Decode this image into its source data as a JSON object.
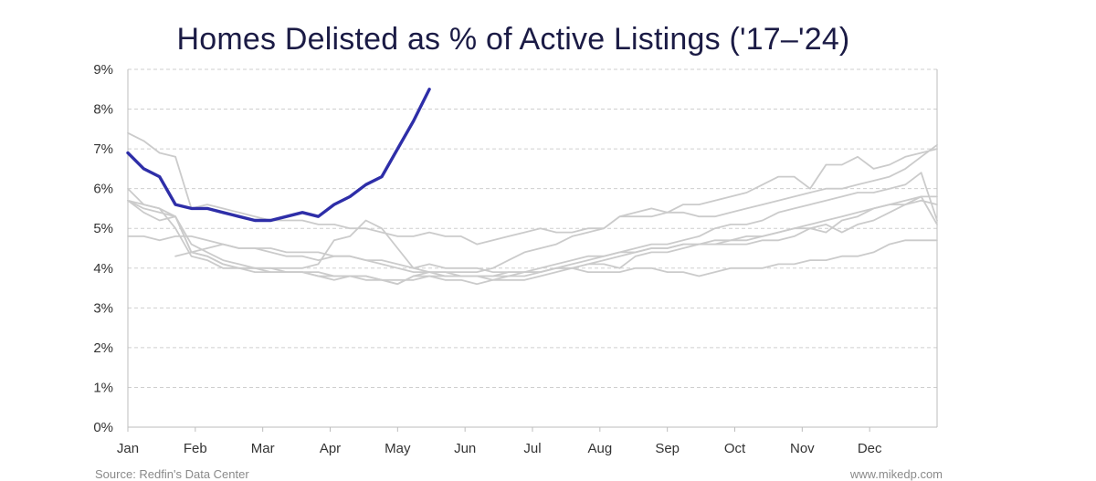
{
  "chart_data": {
    "type": "line",
    "title": "Homes Delisted as % of Active Listings ('17–'24)",
    "xlabel": "",
    "ylabel": "",
    "x_tick_labels": [
      "Jan",
      "Feb",
      "Mar",
      "Apr",
      "May",
      "Jun",
      "Jul",
      "Aug",
      "Sep",
      "Oct",
      "Nov",
      "Dec"
    ],
    "y_tick_labels": [
      "0%",
      "1%",
      "2%",
      "3%",
      "4%",
      "5%",
      "6%",
      "7%",
      "8%",
      "9%"
    ],
    "ylim": [
      0,
      9
    ],
    "x_unit": "week of year",
    "xlim": [
      0,
      51
    ],
    "grid": "horizontal dashed",
    "legend": "none",
    "highlight_color": "#2e2ea8",
    "background_series_color": "#cbcbcb",
    "series": [
      {
        "highlight": false,
        "values": [
          4.8,
          4.8,
          4.7,
          4.8,
          4.8,
          4.7,
          4.6,
          4.5,
          4.5,
          4.4,
          4.3,
          4.3,
          4.2,
          4.3,
          4.3,
          4.2,
          4.2,
          4.1,
          4.0,
          4.1,
          4.0,
          4.0,
          4.0,
          3.9,
          3.9,
          3.9,
          3.9,
          4.0,
          4.0,
          3.9,
          3.9,
          3.9,
          4.0,
          4.0,
          3.9,
          3.9,
          3.8,
          3.9,
          4.0,
          4.0,
          4.0,
          4.1,
          4.1,
          4.2,
          4.2,
          4.3,
          4.3,
          4.4,
          4.6,
          4.7,
          4.7,
          4.7
        ]
      },
      {
        "highlight": false,
        "values": [
          5.7,
          5.5,
          5.4,
          5.3,
          4.6,
          4.4,
          4.2,
          4.1,
          4.0,
          3.9,
          3.9,
          3.9,
          3.8,
          3.8,
          3.8,
          3.7,
          3.7,
          3.6,
          3.8,
          3.9,
          3.9,
          3.8,
          3.8,
          3.7,
          3.8,
          3.9,
          3.9,
          4.0,
          4.0,
          4.1,
          4.1,
          4.0,
          4.3,
          4.4,
          4.4,
          4.5,
          4.6,
          4.6,
          4.6,
          4.6,
          4.7,
          4.7,
          4.8,
          5.0,
          5.1,
          4.9,
          5.1,
          5.2,
          5.4,
          5.6,
          5.7,
          5.6
        ]
      },
      {
        "highlight": false,
        "values": [
          5.7,
          5.4,
          5.2,
          5.3,
          4.4,
          4.3,
          4.1,
          4.0,
          4.0,
          4.0,
          3.9,
          3.9,
          3.8,
          3.7,
          3.8,
          3.8,
          3.7,
          3.6,
          3.8,
          3.8,
          3.7,
          3.7,
          3.6,
          3.7,
          3.7,
          3.7,
          3.8,
          3.9,
          4.0,
          4.1,
          4.2,
          4.3,
          4.4,
          4.5,
          4.5,
          4.6,
          4.6,
          4.6,
          4.7,
          4.7,
          4.8,
          4.9,
          5.0,
          5.0,
          4.9,
          5.2,
          5.3,
          5.5,
          5.6,
          5.7,
          5.8,
          5.1
        ]
      },
      {
        "highlight": false,
        "values": [
          6.0,
          5.6,
          5.5,
          5.3,
          4.4,
          4.3,
          4.1,
          4.0,
          3.9,
          3.9,
          3.9,
          3.9,
          3.9,
          3.8,
          3.8,
          3.8,
          3.7,
          3.7,
          3.7,
          3.8,
          3.8,
          3.8,
          3.8,
          3.8,
          3.8,
          3.8,
          3.9,
          4.0,
          4.1,
          4.2,
          4.3,
          4.4,
          4.4,
          4.5,
          4.5,
          4.6,
          4.6,
          4.7,
          4.7,
          4.8,
          4.8,
          4.9,
          5.0,
          5.1,
          5.2,
          5.3,
          5.4,
          5.5,
          5.6,
          5.6,
          5.8,
          5.8
        ]
      },
      {
        "highlight": false,
        "values": [
          7.4,
          7.2,
          6.9,
          6.8,
          5.5,
          5.6,
          5.5,
          5.4,
          5.3,
          5.2,
          5.2,
          5.2,
          5.1,
          5.1,
          5.0,
          5.0,
          4.9,
          4.8,
          4.8,
          4.9,
          4.8,
          4.8,
          4.6,
          4.7,
          4.8,
          4.9,
          5.0,
          4.9,
          4.9,
          5.0,
          5.0,
          5.3,
          5.3,
          5.3,
          5.4,
          5.4,
          5.3,
          5.3,
          5.4,
          5.5,
          5.6,
          5.7,
          5.8,
          5.9,
          6.0,
          6.0,
          6.1,
          6.2,
          6.3,
          6.5,
          6.8,
          7.1
        ]
      },
      {
        "highlight": false,
        "values": [
          5.7,
          5.6,
          5.5,
          5.0,
          4.3,
          4.2,
          4.0,
          4.0,
          4.0,
          4.0,
          4.0,
          4.0,
          4.1,
          4.7,
          4.8,
          5.2,
          5.0,
          4.5,
          4.0,
          3.9,
          3.8,
          3.8,
          3.8,
          3.8,
          3.9,
          3.9,
          4.0,
          4.1,
          4.2,
          4.3,
          4.3,
          4.4,
          4.5,
          4.6,
          4.6,
          4.7,
          4.8,
          5.0,
          5.1,
          5.1,
          5.2,
          5.4,
          5.5,
          5.6,
          5.7,
          5.8,
          5.9,
          5.9,
          6.0,
          6.1,
          6.4,
          5.2
        ]
      },
      {
        "highlight": false,
        "values": [
          null,
          null,
          null,
          4.3,
          4.4,
          4.5,
          4.6,
          4.5,
          4.5,
          4.5,
          4.4,
          4.4,
          4.4,
          4.3,
          4.3,
          4.2,
          4.1,
          4.0,
          3.9,
          3.9,
          3.9,
          3.9,
          3.9,
          4.0,
          4.2,
          4.4,
          4.5,
          4.6,
          4.8,
          4.9,
          5.0,
          5.3,
          5.4,
          5.5,
          5.4,
          5.6,
          5.6,
          5.7,
          5.8,
          5.9,
          6.1,
          6.3,
          6.3,
          6.0,
          6.6,
          6.6,
          6.8,
          6.5,
          6.6,
          6.8,
          6.9,
          7.0
        ]
      },
      {
        "highlight": true,
        "values": [
          6.9,
          6.5,
          6.3,
          5.6,
          5.5,
          5.5,
          5.4,
          5.3,
          5.2,
          5.2,
          5.3,
          5.4,
          5.3,
          5.6,
          5.8,
          6.1,
          6.3,
          7.0,
          7.7,
          8.5
        ]
      }
    ]
  },
  "footer": {
    "source": "Source: Redfin's Data Center",
    "credit": "www.mikedp.com"
  }
}
